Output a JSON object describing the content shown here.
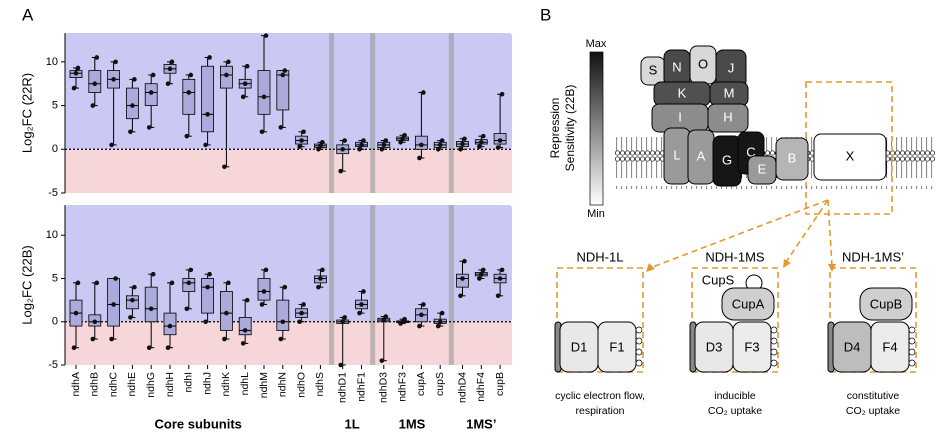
{
  "panel_labels": [
    "A",
    "B"
  ],
  "chart_data": [
    {
      "type": "box",
      "ylabel": "Log₂FC (22R)",
      "ylim": [
        -5,
        13.3
      ],
      "yticks": [
        -5,
        0,
        5,
        10
      ],
      "stats": {
        "min": [
          7,
          5,
          0.5,
          2,
          2.5,
          7.5,
          1.5,
          0.5,
          -2,
          6,
          2,
          2.5,
          0.3,
          0,
          -2.5,
          0,
          0,
          0.8,
          -1,
          0,
          0,
          0.3,
          0.2
        ],
        "q1": [
          8.2,
          6.5,
          7,
          3.5,
          5,
          8.7,
          4,
          2,
          7,
          7,
          4,
          4.5,
          0.6,
          0.2,
          -0.5,
          0.3,
          0.2,
          1,
          0,
          0.2,
          0.3,
          0.6,
          0.6
        ],
        "median": [
          8.7,
          7.5,
          8,
          5,
          6.5,
          9.2,
          6.5,
          4,
          8.5,
          7.5,
          6,
          8.5,
          1,
          0.4,
          0,
          0.5,
          0.5,
          1.2,
          0.5,
          0.5,
          0.6,
          0.8,
          1
        ],
        "q3": [
          9,
          9,
          9,
          7,
          7.5,
          9.7,
          8,
          9.5,
          9.5,
          8,
          9,
          9,
          1.5,
          0.6,
          0.5,
          0.8,
          0.8,
          1.4,
          1.5,
          0.8,
          0.9,
          1.1,
          1.8
        ],
        "max": [
          9.3,
          10.5,
          10,
          8,
          8.5,
          10,
          8.5,
          10.5,
          10,
          9.5,
          13,
          9,
          2,
          0.8,
          1,
          1,
          1,
          1.6,
          6.5,
          1,
          1.2,
          1.5,
          6.3
        ]
      }
    },
    {
      "type": "box",
      "ylabel": "Log₂FC (22B)",
      "ylim": [
        -5,
        13.5
      ],
      "yticks": [
        -5,
        0,
        5,
        10
      ],
      "stats": {
        "min": [
          -3,
          -2,
          -2,
          0.5,
          -3,
          -3,
          1.5,
          0,
          -2,
          -2.5,
          2,
          -2,
          0,
          4,
          -5,
          1,
          -4.5,
          -0.2,
          -0.5,
          -0.5,
          3,
          5,
          3
        ],
        "q1": [
          -0.5,
          -0.5,
          -0.5,
          1.5,
          0,
          -1.5,
          3.5,
          1,
          -1,
          -1.5,
          2.5,
          -1,
          0.5,
          4.5,
          -0.2,
          1.5,
          0,
          -0.1,
          0,
          -0.2,
          4,
          5.3,
          4.5
        ],
        "median": [
          1,
          0,
          2,
          2.5,
          1.5,
          -0.5,
          4.5,
          4,
          1,
          -1,
          3.5,
          0,
          1,
          5,
          0,
          2,
          0.2,
          0,
          0.8,
          0,
          5,
          5.5,
          5
        ],
        "q3": [
          2.5,
          0.8,
          5,
          3,
          4,
          1,
          5,
          5,
          3.5,
          0.5,
          5,
          2.5,
          1.5,
          5.3,
          0.2,
          2.5,
          0.4,
          0.1,
          1.5,
          0.3,
          5.5,
          5.7,
          5.5
        ],
        "max": [
          4.5,
          4.5,
          5,
          4,
          5.5,
          4.5,
          6,
          5.5,
          4.5,
          2.5,
          6,
          4,
          2,
          6,
          0.5,
          3.5,
          0.6,
          0.3,
          2,
          1,
          7,
          6,
          6
        ]
      }
    }
  ],
  "categories": [
    "ndhA",
    "ndhB",
    "ndhC",
    "ndhE",
    "ndhG",
    "ndhH",
    "ndhI",
    "ndhJ",
    "ndhK",
    "ndhL",
    "ndhM",
    "ndhN",
    "ndhO",
    "ndhS",
    "ndhD1",
    "ndhF1",
    "ndhD3",
    "ndhF3",
    "cupA",
    "cupS",
    "ndhD4",
    "ndhF4",
    "cupB"
  ],
  "groups": [
    "Core subunits",
    "Core subunits",
    "Core subunits",
    "Core subunits",
    "Core subunits",
    "Core subunits",
    "Core subunits",
    "Core subunits",
    "Core subunits",
    "Core subunits",
    "Core subunits",
    "Core subunits",
    "Core subunits",
    "Core subunits",
    "1L",
    "1L",
    "1MS",
    "1MS",
    "1MS",
    "1MS",
    "1MS’",
    "1MS’",
    "1MS’"
  ],
  "diagram": {
    "scale": {
      "title": [
        "Repression",
        "Sensitivity (22B)"
      ],
      "max": "Max",
      "min": "Min"
    },
    "subunits": [
      "S",
      "N",
      "O",
      "J",
      "K",
      "M",
      "I",
      "H",
      "L",
      "A",
      "G",
      "C",
      "E",
      "B",
      "X"
    ],
    "complexes": [
      {
        "name": "NDH-1L",
        "subunits": [
          "D1",
          "F1"
        ],
        "caption": [
          "cyclic electron flow,",
          "respiration"
        ]
      },
      {
        "name": "NDH-1MS",
        "subunits": [
          "D3",
          "F3"
        ],
        "extras": [
          "CupS",
          "CupA"
        ],
        "caption": [
          "inducible",
          "CO₂ uptake"
        ]
      },
      {
        "name": "NDH-1MS’",
        "subunits": [
          "D4",
          "F4"
        ],
        "extras": [
          "CupB"
        ],
        "caption": [
          "constitutive",
          "CO₂ uptake"
        ]
      }
    ]
  }
}
